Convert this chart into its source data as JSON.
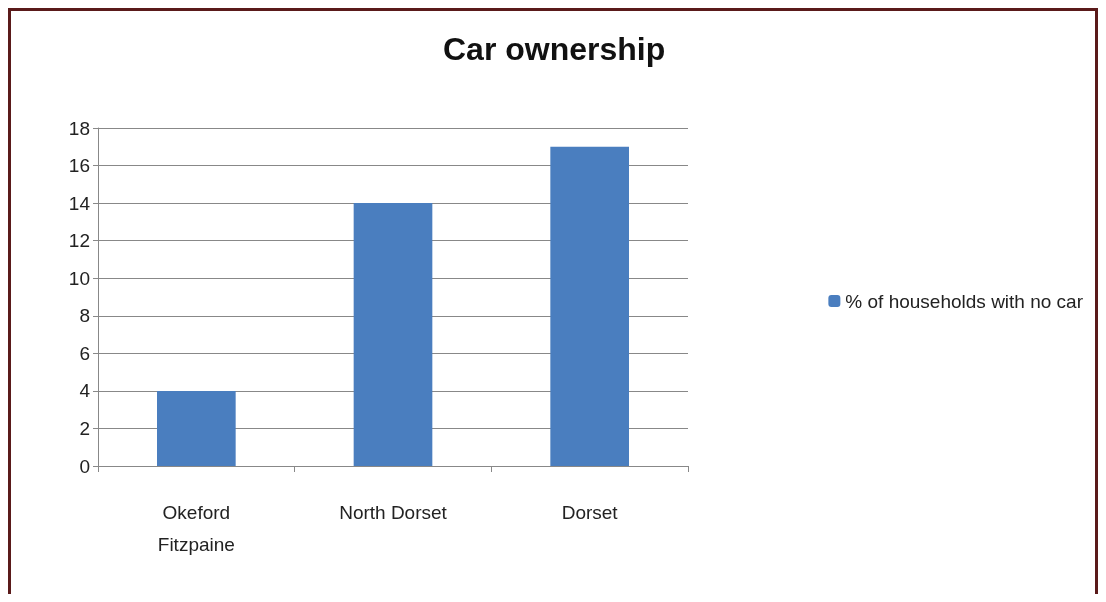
{
  "chart_data": {
    "type": "bar",
    "title": "Car ownership",
    "categories": [
      "Okeford\nFitzpaine",
      "North Dorset",
      "Dorset"
    ],
    "series": [
      {
        "name": "% of households with no car",
        "color": "#4a7ebf",
        "values": [
          4,
          14,
          17
        ]
      }
    ],
    "ylim": [
      0,
      18
    ],
    "yticks": [
      0,
      2,
      4,
      6,
      8,
      10,
      12,
      14,
      16,
      18
    ],
    "grid": "y",
    "legend": "right"
  }
}
